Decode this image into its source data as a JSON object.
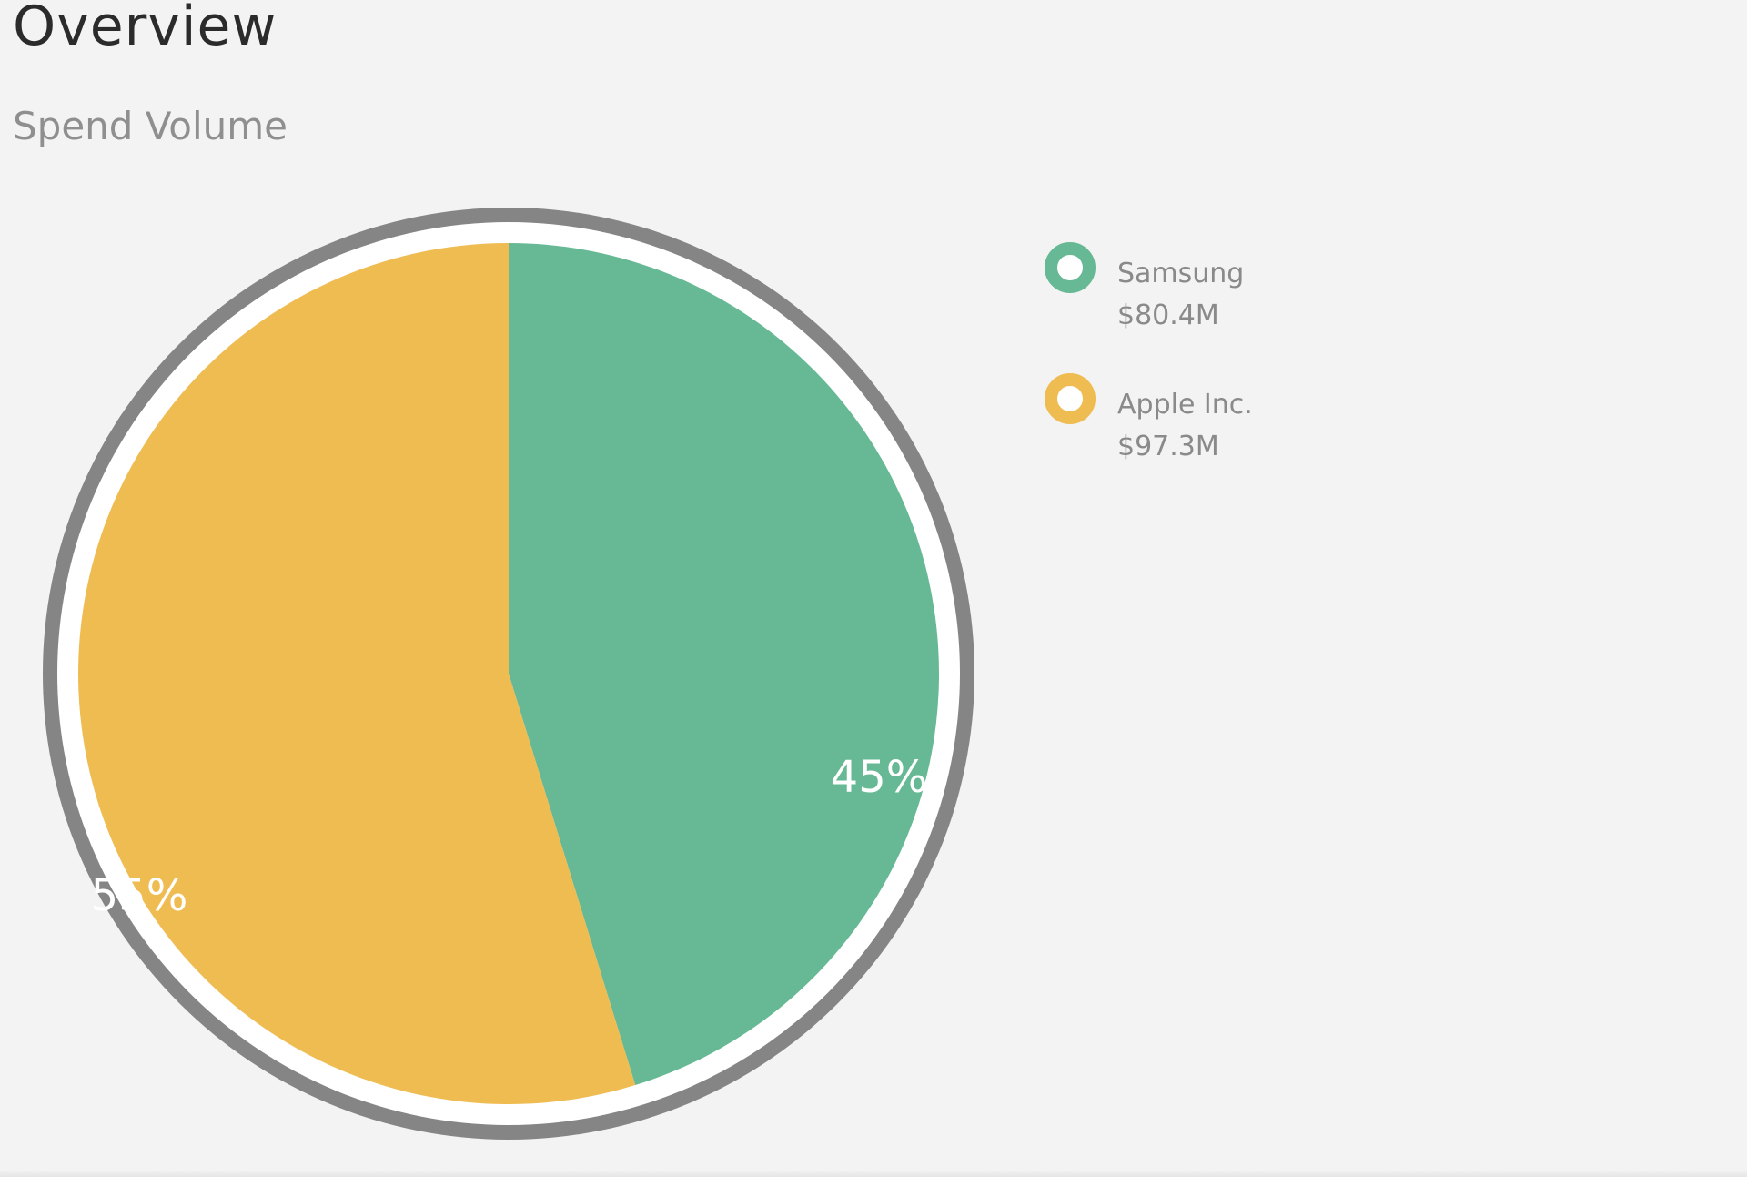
{
  "header": {
    "title": "Overview",
    "subtitle": "Spend Volume"
  },
  "colors": {
    "ring": "#858585",
    "ring_gap": "#ffffff",
    "samsung": "#66b994",
    "apple": "#efbc52"
  },
  "chart_data": {
    "type": "pie",
    "title": "Spend Volume",
    "legend_position": "right",
    "slices": [
      {
        "name": "Samsung",
        "value": 80.4,
        "display_value": "$80.4M",
        "percent": 45,
        "label": "45%",
        "color": "#66b994"
      },
      {
        "name": "Apple Inc.",
        "value": 97.3,
        "display_value": "$97.3M",
        "percent": 55,
        "label": "55%",
        "color": "#efbc52"
      }
    ]
  }
}
